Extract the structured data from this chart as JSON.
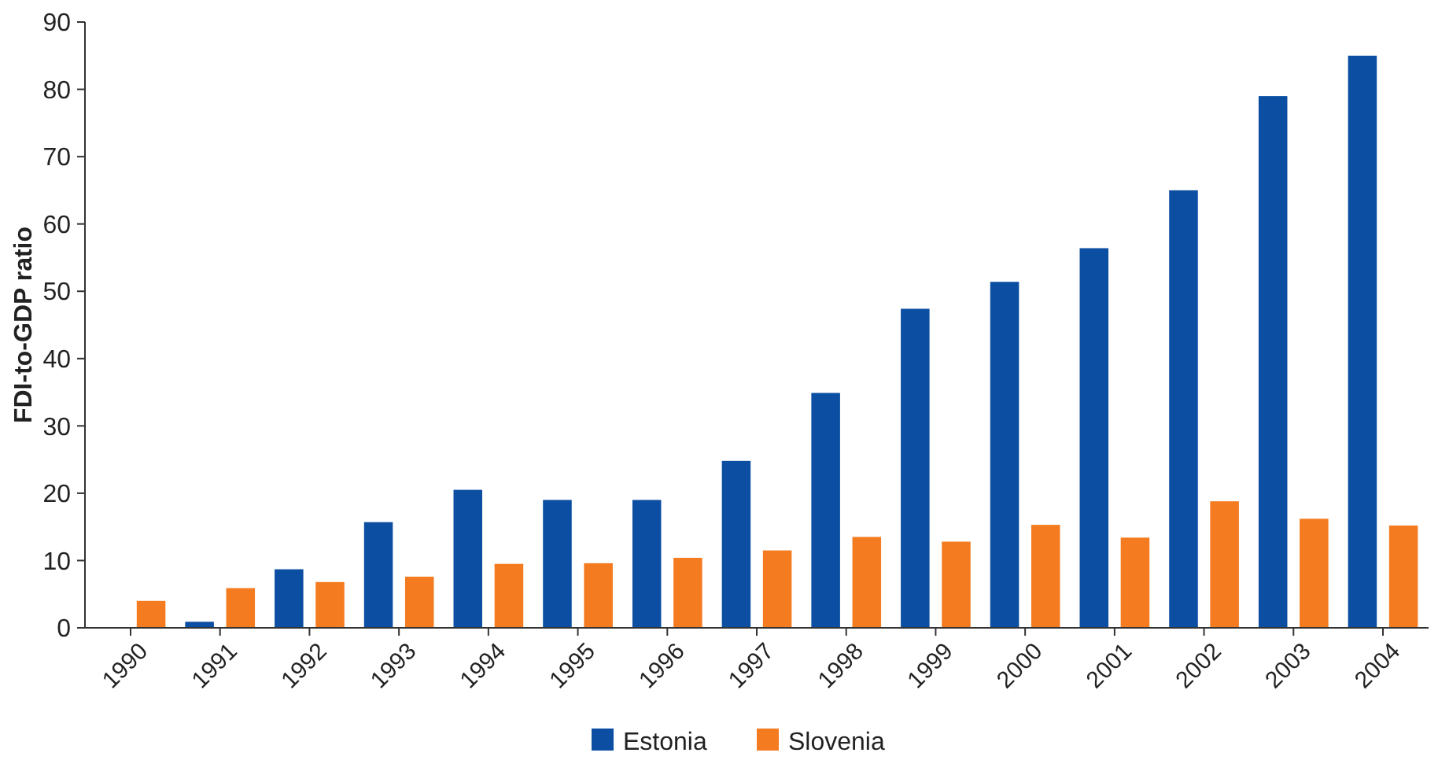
{
  "chart_data": {
    "type": "bar",
    "ylabel": "FDI-to-GDP ratio",
    "categories": [
      "1990",
      "1991",
      "1992",
      "1993",
      "1994",
      "1995",
      "1996",
      "1997",
      "1998",
      "1999",
      "2000",
      "2001",
      "2002",
      "2003",
      "2004"
    ],
    "series": [
      {
        "name": "Estonia",
        "color": "#0b4ea2",
        "values": [
          null,
          0.9,
          8.7,
          15.7,
          20.5,
          19,
          19,
          24.8,
          34.9,
          47.4,
          51.4,
          56.4,
          65,
          79,
          85
        ]
      },
      {
        "name": "Slovenia",
        "color": "#f47b20",
        "values": [
          4,
          5.9,
          6.8,
          7.6,
          9.5,
          9.6,
          10.4,
          11.5,
          13.5,
          12.8,
          15.3,
          13.4,
          18.8,
          16.2,
          15.2
        ]
      }
    ],
    "ylim": [
      0,
      90
    ],
    "yticks": [
      0,
      10,
      20,
      30,
      40,
      50,
      60,
      70,
      80,
      90
    ],
    "legend": "bottom"
  }
}
